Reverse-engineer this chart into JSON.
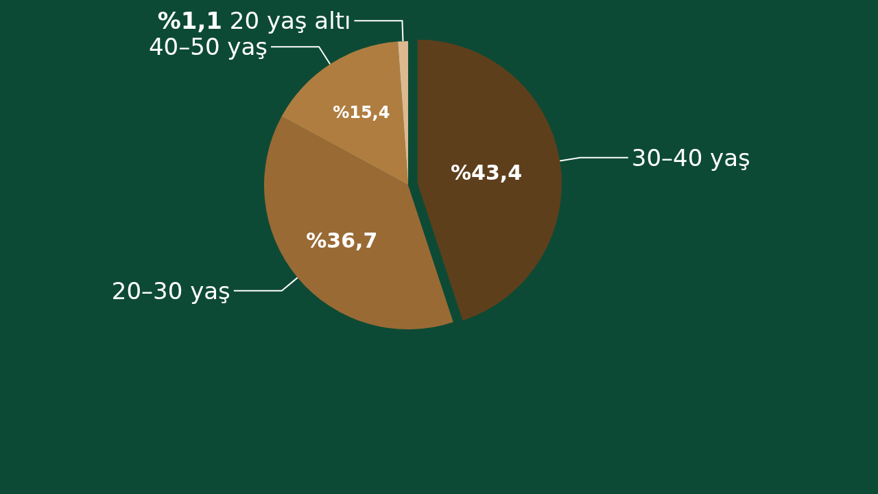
{
  "chart_data": {
    "type": "pie",
    "categories": [
      "30–40 yaş",
      "20–30 yaş",
      "40–50 yaş",
      "20 yaş altı"
    ],
    "values": [
      43.4,
      36.7,
      15.4,
      1.1
    ],
    "value_labels": [
      "%43,4",
      "%36,7",
      "%15,4",
      "%1,1"
    ],
    "colors": [
      "#5e3f1c",
      "#9a6a35",
      "#b07d40",
      "#dcb98f"
    ],
    "legend": false
  }
}
